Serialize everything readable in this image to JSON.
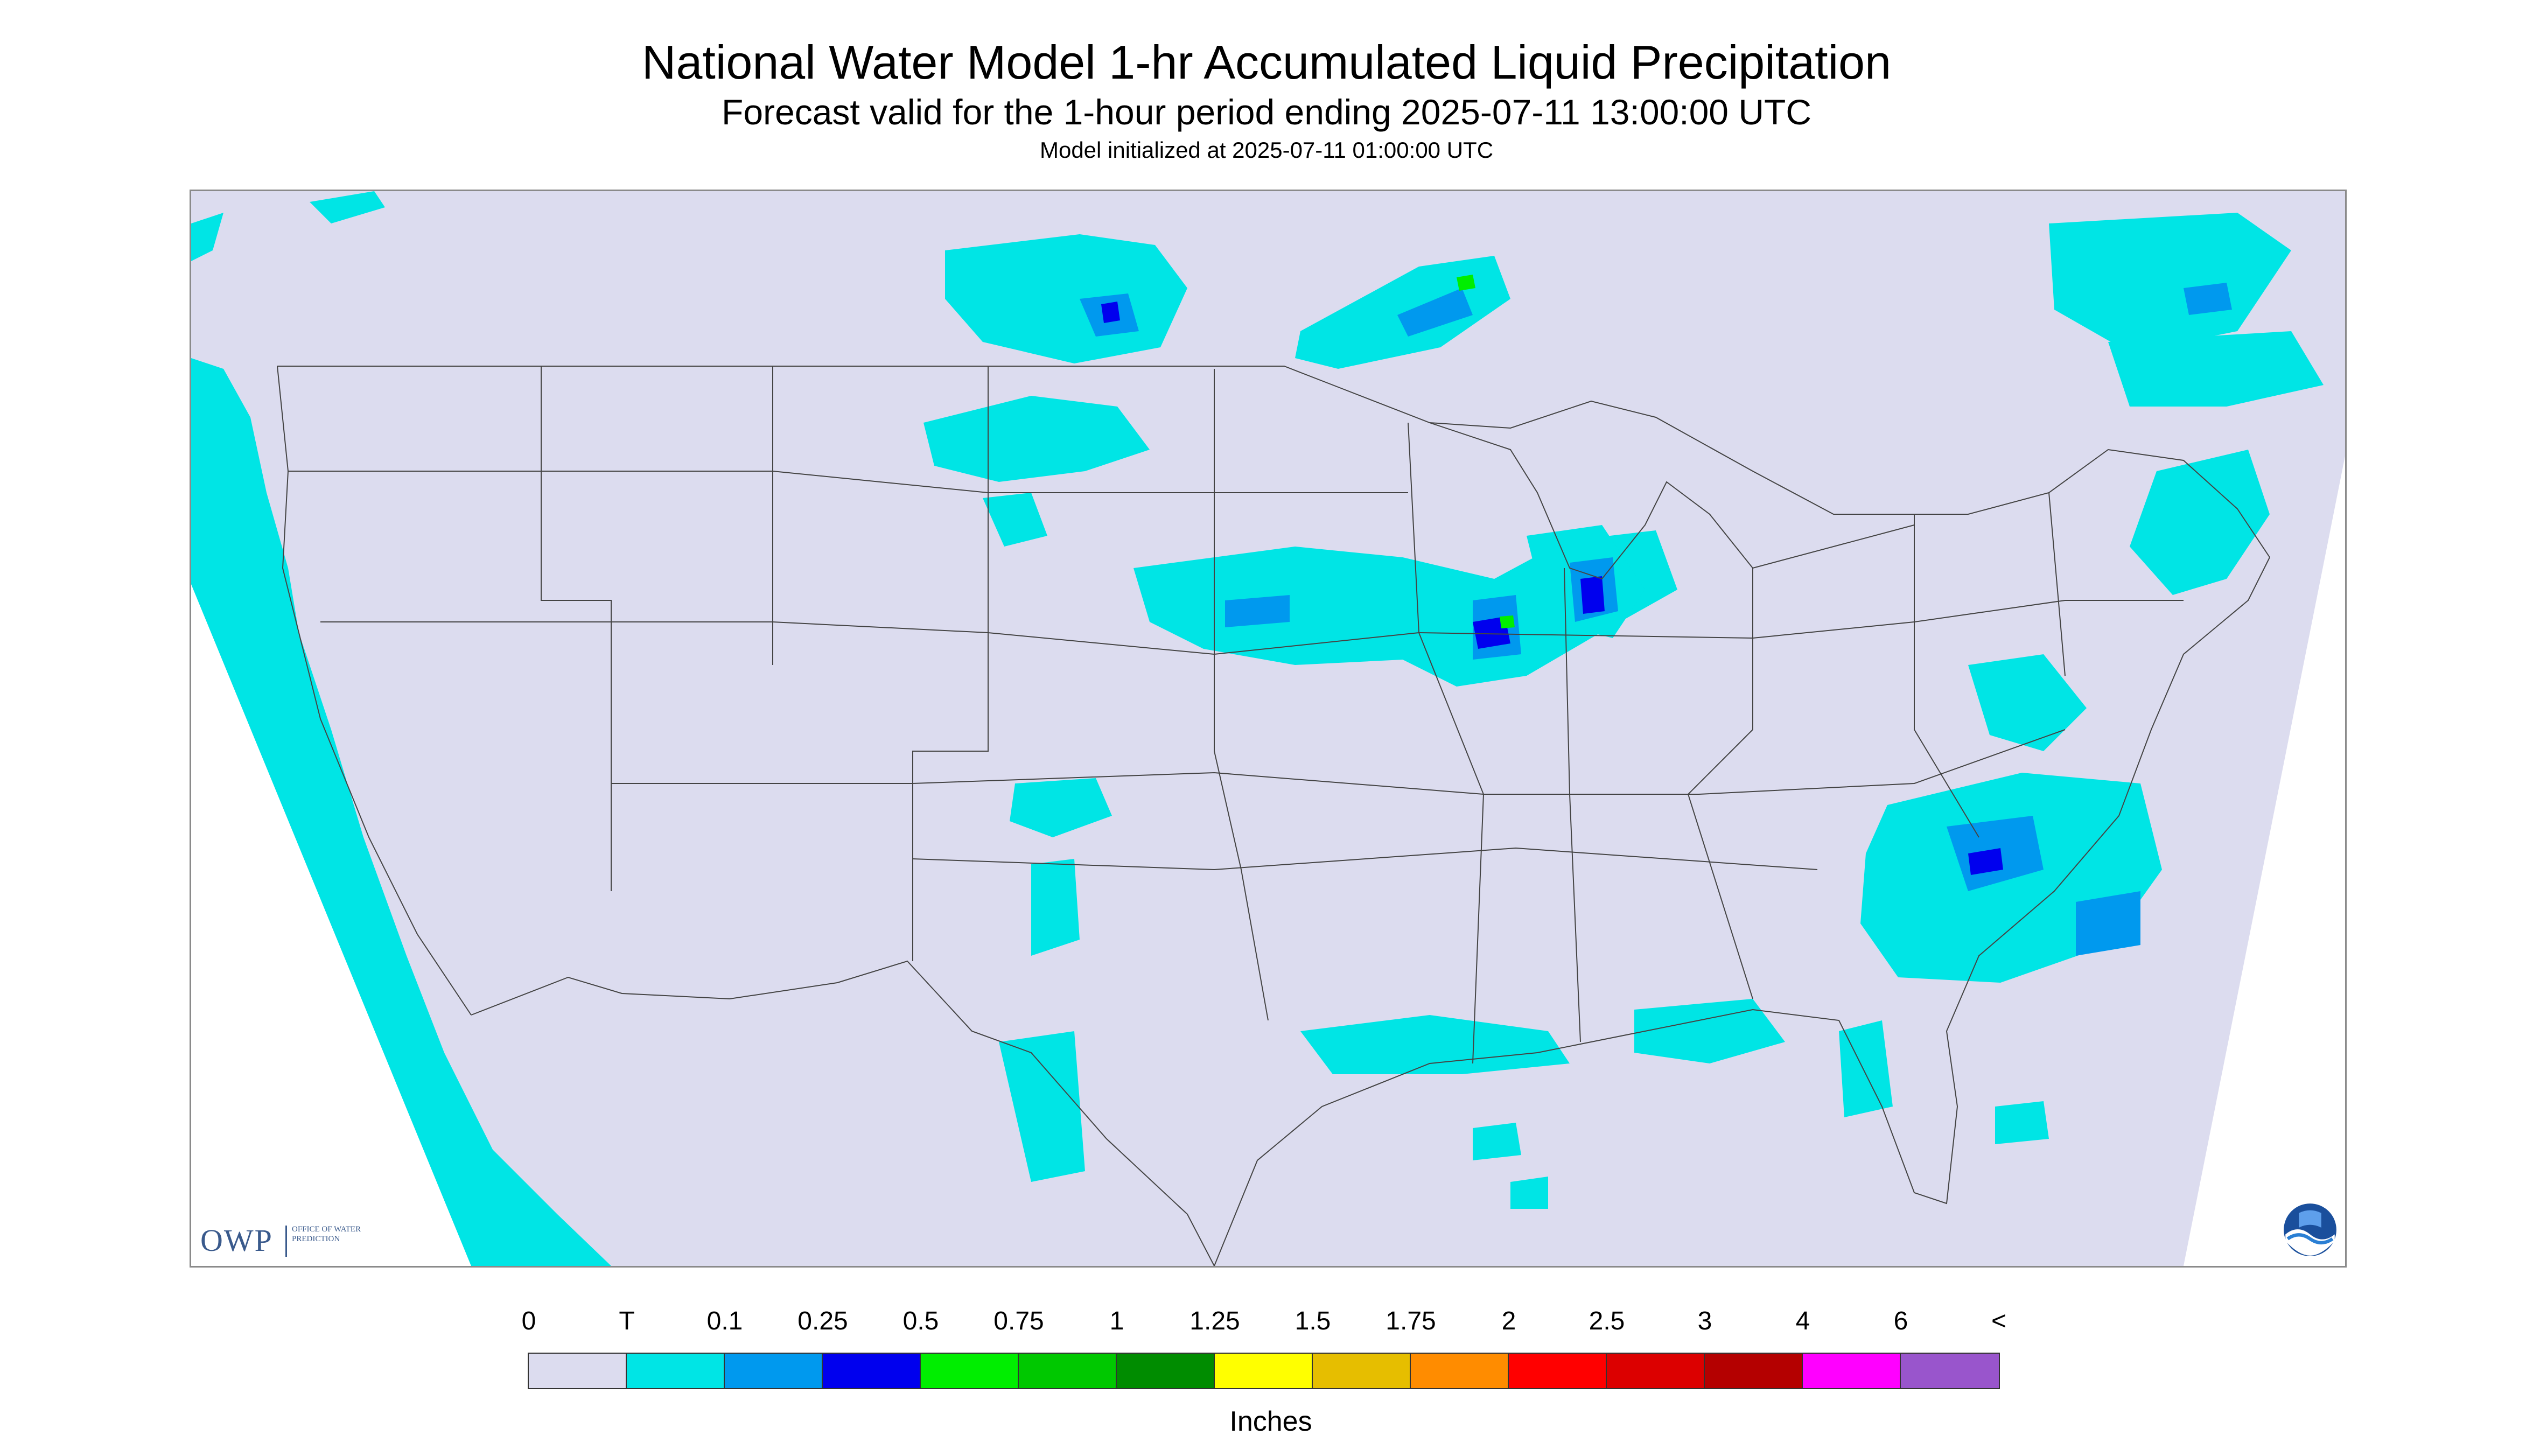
{
  "header": {
    "title": "National Water Model 1-hr Accumulated Liquid Precipitation",
    "subtitle": "Forecast valid for the 1-hour period ending 2025-07-11 13:00:00 UTC",
    "init": "Model initialized at 2025-07-11 01:00:00 UTC"
  },
  "map": {
    "background_color": "#dcdcef",
    "outside_color": "#ffffff",
    "border_color": "#444444",
    "precip_colors": {
      "trace": "#00e5e5",
      "light": "#0099ee",
      "moderate": "#0000ee",
      "heavy": "#00ee00"
    }
  },
  "logos": {
    "owp_mark": "OWP",
    "owp_text": "Office of Water Prediction",
    "noaa_icon": "noaa-logo-icon"
  },
  "legend": {
    "labels": [
      "0",
      "T",
      "0.1",
      "0.25",
      "0.5",
      "0.75",
      "1",
      "1.25",
      "1.5",
      "1.75",
      "2",
      "2.5",
      "3",
      "4",
      "6",
      "<"
    ],
    "colors": [
      "#dcdcef",
      "#00e5e5",
      "#0099ee",
      "#0000ee",
      "#00ee00",
      "#00c800",
      "#008c00",
      "#ffff00",
      "#e6be00",
      "#ff8c00",
      "#ff0000",
      "#dc0000",
      "#b40000",
      "#ff00ff",
      "#9955cc"
    ],
    "units": "Inches"
  }
}
